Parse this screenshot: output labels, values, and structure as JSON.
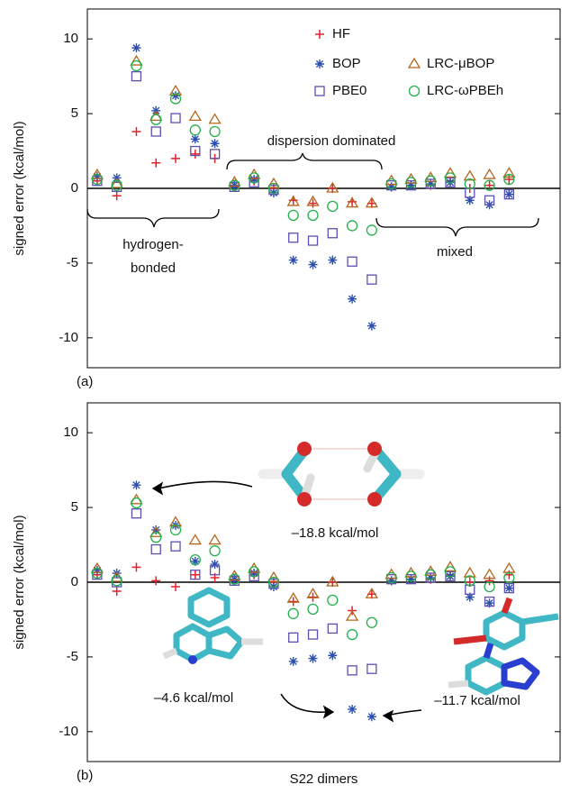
{
  "chart_data": [
    {
      "type": "scatter",
      "panel_label": "(a)",
      "ylabel": "signed error (kcal/mol)",
      "x": [
        1,
        2,
        3,
        4,
        5,
        6,
        7,
        8,
        9,
        10,
        11,
        12,
        13,
        14,
        15,
        16,
        17,
        18,
        19,
        20,
        21,
        22
      ],
      "xlim": [
        0.5,
        24.6
      ],
      "ylim": [
        -12,
        12
      ],
      "yticks": [
        -10,
        -5,
        0,
        5,
        10
      ],
      "zero_line": true,
      "legend": "upper right",
      "series": [
        {
          "name": "HF",
          "color": "#e5202a",
          "marker": "plus",
          "values": [
            0.5,
            -0.5,
            3.8,
            1.7,
            2.0,
            2.3,
            2.0,
            0.1,
            0.5,
            0.0,
            -0.8,
            -1.0,
            0.0,
            -0.9,
            -1.0,
            0.1,
            0.2,
            0.2,
            0.5,
            0.0,
            0.2,
            0.6
          ]
        },
        {
          "name": "BOP",
          "color": "#2a4fb0",
          "marker": "star",
          "values": [
            0.8,
            0.7,
            9.4,
            5.2,
            6.2,
            3.3,
            3.0,
            0.2,
            0.6,
            -0.3,
            -4.8,
            -5.1,
            -4.8,
            -7.4,
            -9.2,
            0.1,
            0.2,
            0.3,
            0.4,
            -0.8,
            -1.1,
            -0.4
          ]
        },
        {
          "name": "PBE0",
          "color": "#5b4fb3",
          "marker": "square",
          "values": [
            0.5,
            0.1,
            7.5,
            3.8,
            4.7,
            2.5,
            2.3,
            0.1,
            0.4,
            -0.1,
            -3.3,
            -3.5,
            -3.0,
            -4.9,
            -6.1,
            0.2,
            0.2,
            0.3,
            0.4,
            -0.3,
            -0.8,
            -0.4
          ]
        },
        {
          "name": "LRC-μBOP",
          "color": "#b5651d",
          "marker": "triangle",
          "values": [
            0.9,
            0.3,
            8.5,
            4.8,
            6.5,
            4.8,
            4.6,
            0.4,
            0.9,
            0.3,
            -0.9,
            -0.9,
            0.0,
            -1.0,
            -1.0,
            0.5,
            0.6,
            0.7,
            1.0,
            0.8,
            0.9,
            1.0
          ]
        },
        {
          "name": "LRC-ωPBEh",
          "color": "#22b04a",
          "marker": "circle",
          "values": [
            0.6,
            0.2,
            8.2,
            4.6,
            6.0,
            3.9,
            3.8,
            0.2,
            0.7,
            0.0,
            -1.8,
            -1.8,
            -1.2,
            -2.5,
            -2.8,
            0.3,
            0.4,
            0.5,
            0.7,
            0.3,
            0.2,
            0.6
          ]
        }
      ],
      "annotations": [
        "hydrogen-",
        "bonded",
        "dispersion dominated",
        "mixed"
      ]
    },
    {
      "type": "scatter",
      "panel_label": "(b)",
      "ylabel": "signed error (kcal/mol)",
      "xlabel": "S22 dimers",
      "x": [
        1,
        2,
        3,
        4,
        5,
        6,
        7,
        8,
        9,
        10,
        11,
        12,
        13,
        14,
        15,
        16,
        17,
        18,
        19,
        20,
        21,
        22
      ],
      "xlim": [
        0.5,
        24.6
      ],
      "ylim": [
        -12,
        12
      ],
      "yticks": [
        -10,
        -5,
        0,
        5,
        10
      ],
      "zero_line": true,
      "legend": false,
      "series": [
        {
          "name": "HF",
          "color": "#e5202a",
          "marker": "plus",
          "values": [
            0.5,
            -0.6,
            1.0,
            0.1,
            -0.3,
            0.5,
            0.3,
            0.1,
            0.5,
            0.0,
            -1.3,
            -1.0,
            0.0,
            -1.9,
            -0.8,
            0.1,
            0.2,
            0.2,
            0.5,
            0.0,
            0.1,
            0.5
          ]
        },
        {
          "name": "BOP",
          "color": "#2a4fb0",
          "marker": "star",
          "values": [
            0.8,
            0.6,
            6.5,
            3.5,
            3.8,
            1.4,
            1.2,
            0.2,
            0.6,
            -0.3,
            -5.3,
            -5.1,
            -4.9,
            -8.5,
            -9.0,
            0.1,
            0.2,
            0.3,
            0.4,
            -1.0,
            -1.4,
            -0.4
          ]
        },
        {
          "name": "PBE0",
          "color": "#5b4fb3",
          "marker": "square",
          "values": [
            0.5,
            0.0,
            4.6,
            2.2,
            2.4,
            0.5,
            0.8,
            0.1,
            0.4,
            -0.1,
            -3.7,
            -3.5,
            -3.1,
            -5.9,
            -5.8,
            0.2,
            0.2,
            0.3,
            0.4,
            -0.5,
            -1.3,
            -0.4
          ]
        },
        {
          "name": "LRC-μBOP",
          "color": "#b5651d",
          "marker": "triangle",
          "values": [
            0.9,
            0.3,
            5.5,
            3.3,
            4.0,
            2.8,
            2.8,
            0.4,
            0.9,
            0.3,
            -1.1,
            -0.8,
            0.0,
            -2.3,
            -0.8,
            0.5,
            0.6,
            0.7,
            1.0,
            0.6,
            0.5,
            0.9
          ]
        },
        {
          "name": "LRC-ωPBEh",
          "color": "#22b04a",
          "marker": "circle",
          "values": [
            0.6,
            0.1,
            5.3,
            3.0,
            3.5,
            1.5,
            2.1,
            0.2,
            0.7,
            0.0,
            -2.1,
            -1.8,
            -1.2,
            -3.5,
            -2.7,
            0.3,
            0.4,
            0.5,
            0.7,
            0.1,
            -0.3,
            0.3
          ]
        }
      ],
      "annotations": [
        "–18.8 kcal/mol",
        "–4.6 kcal/mol",
        "–11.7 kcal/mol"
      ]
    }
  ]
}
